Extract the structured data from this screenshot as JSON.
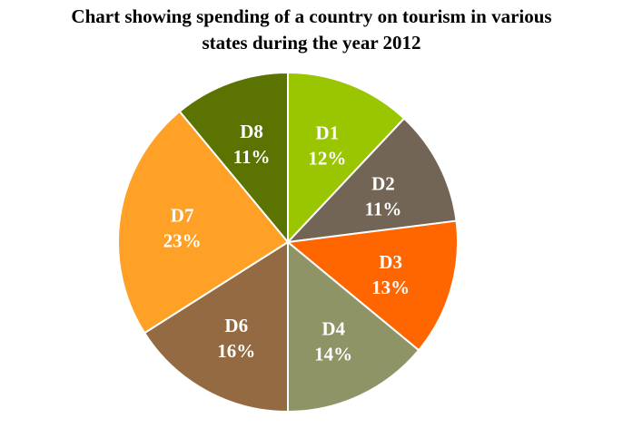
{
  "chart_data": {
    "type": "pie",
    "title_line1": "Chart showing spending of a country on tourism in various",
    "title_line2": "states during the year 2012",
    "start": "top",
    "direction": "clockwise",
    "unit": "%",
    "slices": [
      {
        "label": "D1",
        "value": 12,
        "color": "#99c600"
      },
      {
        "label": "D2",
        "value": 11,
        "color": "#726556"
      },
      {
        "label": "D3",
        "value": 13,
        "color": "#ff6600"
      },
      {
        "label": "D4",
        "value": 14,
        "color": "#8f9467"
      },
      {
        "label": "D6",
        "value": 16,
        "color": "#936a42"
      },
      {
        "label": "D7",
        "value": 23,
        "color": "#ffa126"
      },
      {
        "label": "D8",
        "value": 11,
        "color": "#5a7301"
      }
    ]
  }
}
